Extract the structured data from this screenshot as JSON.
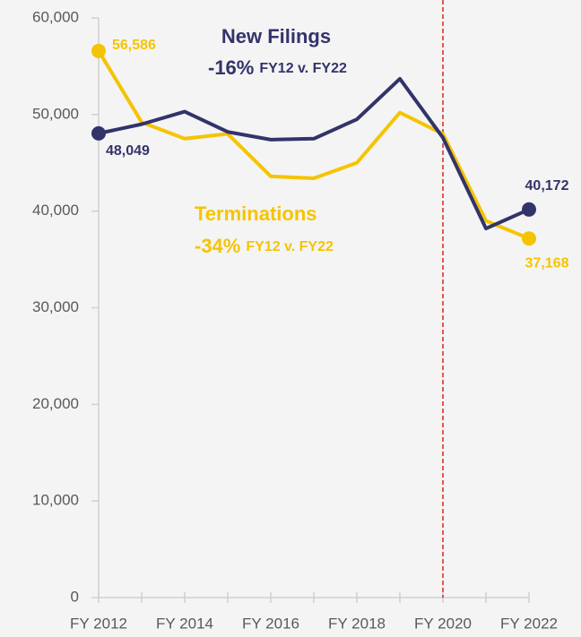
{
  "chart_data": {
    "type": "line",
    "categories": [
      "FY 2012",
      null,
      "FY 2014",
      null,
      "FY 2016",
      null,
      "FY 2018",
      null,
      "FY 2020",
      null,
      "FY 2022"
    ],
    "series": [
      {
        "name": "New Filings",
        "color": "#33336b",
        "values": [
          48049,
          49000,
          50300,
          48200,
          47400,
          47500,
          49500,
          53700,
          47600,
          38200,
          40172
        ],
        "value_labels": [
          "48,049",
          null,
          null,
          null,
          null,
          null,
          null,
          null,
          null,
          null,
          "40,172"
        ]
      },
      {
        "name": "Terminations",
        "color": "#f5c400",
        "values": [
          56586,
          49200,
          47500,
          48000,
          43600,
          43400,
          45000,
          50200,
          48000,
          39000,
          37168
        ],
        "value_labels": [
          "56,586",
          null,
          null,
          null,
          null,
          null,
          null,
          null,
          null,
          null,
          "37,168"
        ]
      }
    ],
    "annotations": [
      {
        "change": "-16%",
        "note": "FY12 v. FY22"
      },
      {
        "change": "-34%",
        "note": "FY12 v. FY22"
      }
    ],
    "vline": {
      "index": 8,
      "color": "#e0201b"
    },
    "ylim": [
      0,
      60000
    ],
    "yticks": [
      {
        "value": 0,
        "label": "0"
      },
      {
        "value": 10000,
        "label": "10,000"
      },
      {
        "value": 20000,
        "label": "20,000"
      },
      {
        "value": 30000,
        "label": "30,000"
      },
      {
        "value": 40000,
        "label": "40,000"
      },
      {
        "value": 50000,
        "label": "50,000"
      },
      {
        "value": 60000,
        "label": "60,000"
      }
    ],
    "grid": false
  }
}
